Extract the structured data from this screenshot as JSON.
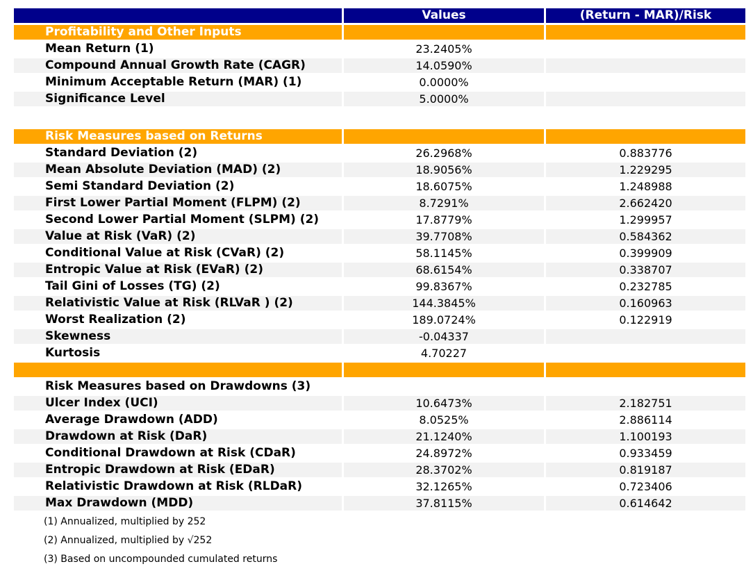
{
  "colors": {
    "header_bg": "#00008B",
    "section_bg": "#FFA500",
    "stripe_bg": "#F2F2F2",
    "header_text": "#FFFFFF",
    "body_text": "#000000"
  },
  "chart_data": {
    "type": "table",
    "title": "",
    "columns": [
      "",
      "Values",
      "(Return - MAR)/Risk"
    ],
    "rows": [
      {
        "kind": "section",
        "label": "Profitability and Other Inputs",
        "value": "",
        "ratio": ""
      },
      {
        "kind": "data",
        "label": "Mean Return (1)",
        "value": "23.2405%",
        "ratio": ""
      },
      {
        "kind": "data",
        "label": "Compound Annual Growth Rate (CAGR)",
        "value": "14.0590%",
        "ratio": ""
      },
      {
        "kind": "data",
        "label": "Minimum Acceptable Return (MAR) (1)",
        "value": "0.0000%",
        "ratio": ""
      },
      {
        "kind": "data",
        "label": "Significance Level",
        "value": "5.0000%",
        "ratio": ""
      },
      {
        "kind": "spacer"
      },
      {
        "kind": "section",
        "label": "Risk Measures based on Returns",
        "value": "",
        "ratio": ""
      },
      {
        "kind": "data",
        "label": "Standard Deviation (2)",
        "value": "26.2968%",
        "ratio": "0.883776"
      },
      {
        "kind": "data",
        "label": "Mean Absolute Deviation (MAD) (2)",
        "value": "18.9056%",
        "ratio": "1.229295"
      },
      {
        "kind": "data",
        "label": "Semi Standard Deviation (2)",
        "value": "18.6075%",
        "ratio": "1.248988"
      },
      {
        "kind": "data",
        "label": "First Lower Partial Moment (FLPM) (2)",
        "value": "8.7291%",
        "ratio": "2.662420"
      },
      {
        "kind": "data",
        "label": "Second Lower Partial Moment (SLPM) (2)",
        "value": "17.8779%",
        "ratio": "1.299957"
      },
      {
        "kind": "data",
        "label": "Value at Risk (VaR) (2)",
        "value": "39.7708%",
        "ratio": "0.584362"
      },
      {
        "kind": "data",
        "label": "Conditional Value at Risk (CVaR) (2)",
        "value": "58.1145%",
        "ratio": "0.399909"
      },
      {
        "kind": "data",
        "label": "Entropic Value at Risk (EVaR) (2)",
        "value": "68.6154%",
        "ratio": "0.338707"
      },
      {
        "kind": "data",
        "label": "Tail Gini of Losses (TG) (2)",
        "value": "99.8367%",
        "ratio": "0.232785"
      },
      {
        "kind": "data",
        "label": "Relativistic Value at Risk (RLVaR ) (2)",
        "value": "144.3845%",
        "ratio": "0.160963"
      },
      {
        "kind": "data",
        "label": "Worst Realization (2)",
        "value": "189.0724%",
        "ratio": "0.122919"
      },
      {
        "kind": "data",
        "label": "Skewness",
        "value": "-0.04337",
        "ratio": ""
      },
      {
        "kind": "data",
        "label": "Kurtosis",
        "value": "4.70227",
        "ratio": ""
      },
      {
        "kind": "section",
        "label": "",
        "value": "",
        "ratio": ""
      },
      {
        "kind": "title",
        "label": "Risk Measures based on Drawdowns (3)",
        "value": "",
        "ratio": ""
      },
      {
        "kind": "data",
        "label": "Ulcer Index (UCI)",
        "value": "10.6473%",
        "ratio": "2.182751"
      },
      {
        "kind": "data",
        "label": "Average Drawdown (ADD)",
        "value": "8.0525%",
        "ratio": "2.886114"
      },
      {
        "kind": "data",
        "label": "Drawdown at Risk (DaR)",
        "value": "21.1240%",
        "ratio": "1.100193"
      },
      {
        "kind": "data",
        "label": "Conditional Drawdown at Risk (CDaR)",
        "value": "24.8972%",
        "ratio": "0.933459"
      },
      {
        "kind": "data",
        "label": "Entropic Drawdown at Risk (EDaR)",
        "value": "28.3702%",
        "ratio": "0.819187"
      },
      {
        "kind": "data",
        "label": "Relativistic Drawdown at Risk (RLDaR)",
        "value": "32.1265%",
        "ratio": "0.723406"
      },
      {
        "kind": "data",
        "label": "Max Drawdown (MDD)",
        "value": "37.8115%",
        "ratio": "0.614642"
      }
    ],
    "footnotes": [
      "(1) Annualized, multiplied by 252",
      "(2) Annualized, multiplied by √252",
      "(3) Based on uncompounded cumulated returns"
    ]
  }
}
